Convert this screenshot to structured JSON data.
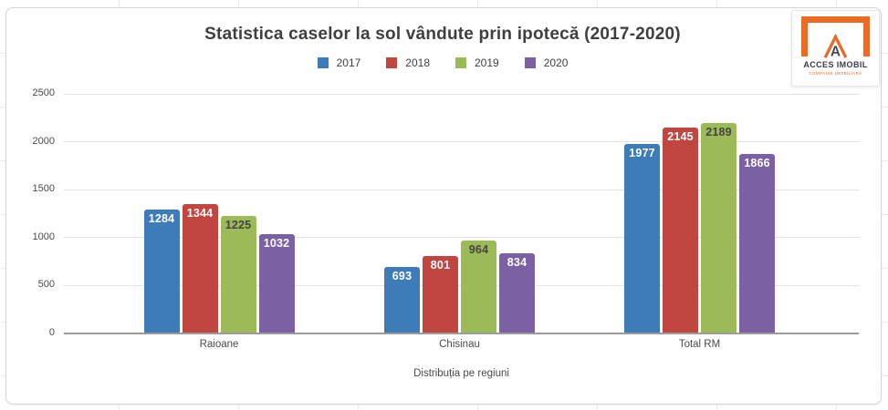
{
  "chart_data": {
    "type": "bar",
    "title": "Statistica caselor la sol vândute prin ipotecă (2017-2020)",
    "categories": [
      "Raioane",
      "Chisinau",
      "Total RM"
    ],
    "series": [
      {
        "name": "2017",
        "color": "#3e7cb9",
        "label_color": "#ffffff",
        "values": [
          1284,
          693,
          1977
        ]
      },
      {
        "name": "2018",
        "color": "#c1463f",
        "label_color": "#ffffff",
        "values": [
          1344,
          801,
          2145
        ]
      },
      {
        "name": "2019",
        "color": "#9cba58",
        "label_color": "#444444",
        "values": [
          1225,
          964,
          2189
        ]
      },
      {
        "name": "2020",
        "color": "#7c60a4",
        "label_color": "#ffffff",
        "values": [
          1032,
          834,
          1866
        ]
      }
    ],
    "xlabel": "Distribuția pe regiuni",
    "ylabel": "",
    "yticks": [
      0,
      500,
      1000,
      1500,
      2000,
      2500
    ],
    "ylim": [
      0,
      2500
    ],
    "grid": true,
    "legend_position": "top",
    "value_labels": "inside-top"
  },
  "logo": {
    "name": "ACCES IMOBIL",
    "tagline": "COMPANIE IMOBILIARĂ",
    "letter": "A",
    "accent_color": "#e96b25",
    "text_color": "#3c3c46"
  }
}
